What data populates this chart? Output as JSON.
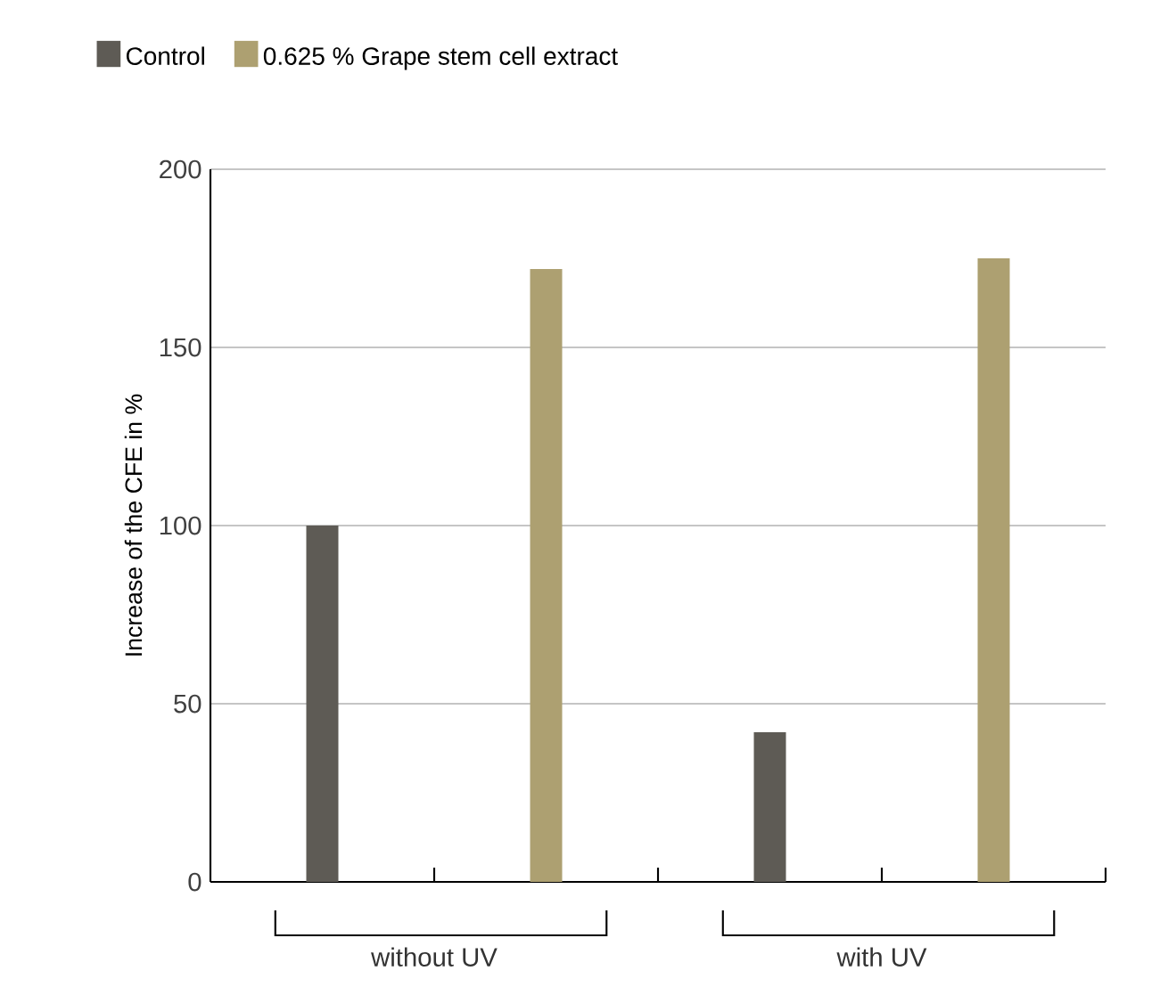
{
  "chart_data": {
    "type": "bar",
    "ylabel": "Increase of the CFE in %",
    "categories": [
      "without UV",
      "with UV"
    ],
    "series": [
      {
        "name": "Control",
        "color": "#5e5b55",
        "values": [
          100,
          42
        ]
      },
      {
        "name": "0.625 % Grape stem cell extract",
        "color": "#ada071",
        "values": [
          172,
          175
        ]
      }
    ],
    "ylim": [
      0,
      200
    ],
    "yticks": [
      0,
      50,
      100,
      150,
      200
    ],
    "grid": "y",
    "legend": "top left"
  }
}
